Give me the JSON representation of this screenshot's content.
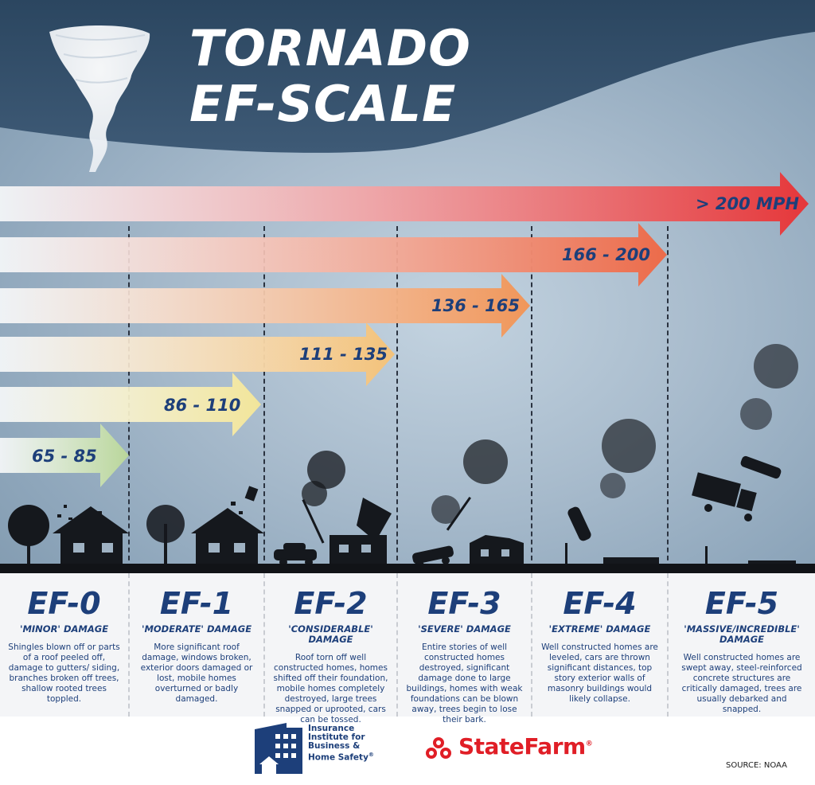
{
  "title": {
    "line1": "TORNADO",
    "line2": "EF-SCALE"
  },
  "arrows": [
    {
      "label": "> 200 MPH",
      "color": "#e5373a"
    },
    {
      "label": "166 - 200",
      "color": "#ec6b4a"
    },
    {
      "label": "136 - 165",
      "color": "#f0965a"
    },
    {
      "label": "111 - 135",
      "color": "#f3c27a"
    },
    {
      "label": "86 - 110",
      "color": "#f2e59a"
    },
    {
      "label": "65 - 85",
      "color": "#b9d69a"
    }
  ],
  "levels": [
    {
      "name": "EF-0",
      "damage": "'MINOR' DAMAGE",
      "description": "Shingles blown off or parts of a roof peeled off, damage to gutters/ siding, branches broken off trees, shallow rooted trees toppled."
    },
    {
      "name": "EF-1",
      "damage": "'MODERATE' DAMAGE",
      "description": "More significant roof damage, windows broken, exterior doors damaged or lost, mobile homes overturned or badly damaged."
    },
    {
      "name": "EF-2",
      "damage": "'CONSIDERABLE' DAMAGE",
      "description": "Roof torn off well constructed homes, homes shifted off their foundation, mobile homes completely destroyed, large trees snapped or uprooted, cars can be tossed."
    },
    {
      "name": "EF-3",
      "damage": "'SEVERE' DAMAGE",
      "description": "Entire stories of well constructed homes destroyed, significant damage done to large buildings, homes with weak foundations can be blown away, trees begin to lose their bark."
    },
    {
      "name": "EF-4",
      "damage": "'EXTREME' DAMAGE",
      "description": "Well constructed homes are leveled, cars are thrown significant distances, top story exterior walls of masonry buildings would likely collapse."
    },
    {
      "name": "EF-5",
      "damage": "'MASSIVE/INCREDIBLE' DAMAGE",
      "description": "Well constructed homes are swept away, steel-reinforced concrete structures are critically damaged, trees are usually debarked and snapped."
    }
  ],
  "logos": {
    "ibhs": "Insurance Institute for Business & Home Safety",
    "ibhs_reg": "®",
    "statefarm": "StateFarm",
    "statefarm_reg": "®"
  },
  "source": "SOURCE: NOAA",
  "icons": [
    "tornado-icon",
    "house-icon",
    "tree-icon",
    "car-icon",
    "truck-icon",
    "debris-icon",
    "ibhs-logo-icon",
    "statefarm-logo-icon"
  ]
}
